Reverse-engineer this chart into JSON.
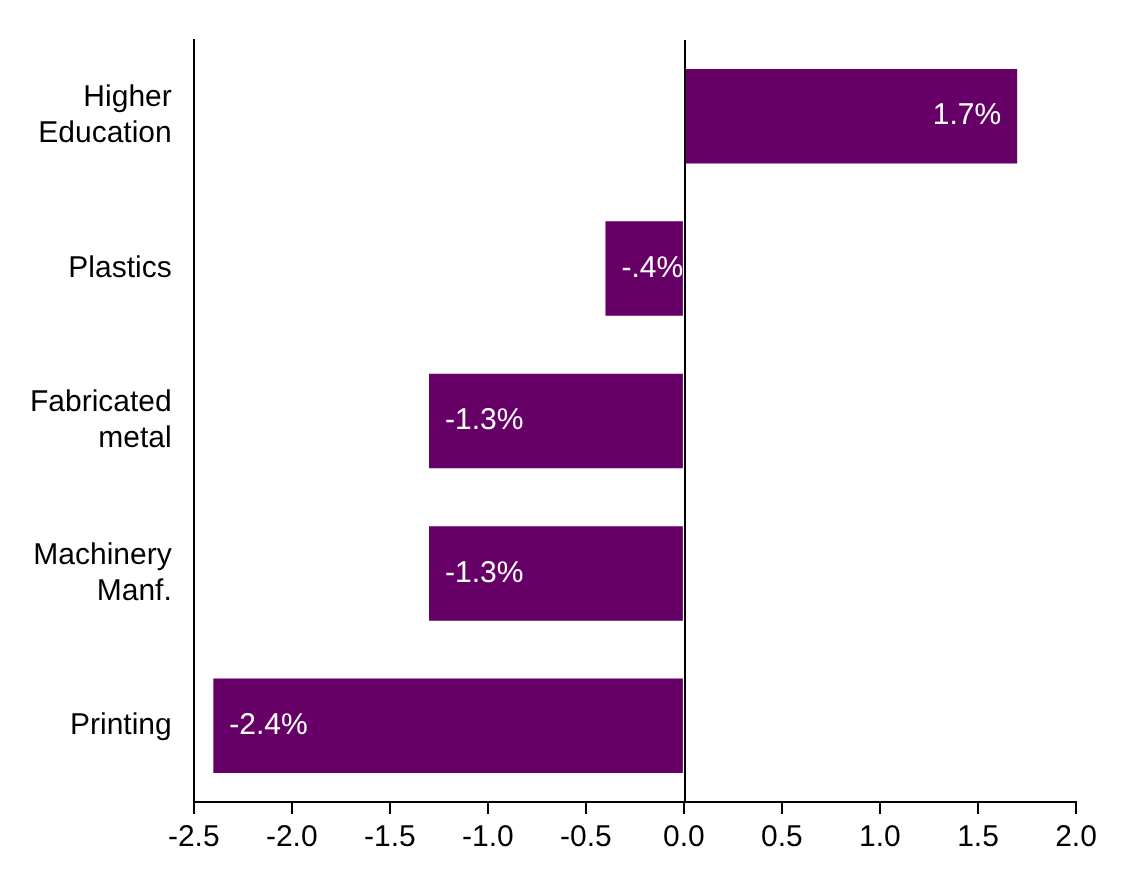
{
  "chart_data": {
    "type": "bar",
    "orientation": "horizontal",
    "categories": [
      "Higher Education",
      "Plastics",
      "Fabricated metal",
      "Machinery Manf.",
      "Printing"
    ],
    "values": [
      1.7,
      -0.4,
      -1.3,
      -1.3,
      -2.4
    ],
    "color": "#660066",
    "value_labels": [
      "1.7%",
      "-.4%",
      "-1.3%",
      "-1.3%",
      "-2.4%"
    ],
    "xlim": [
      -2.5,
      2.0
    ],
    "xticks": [
      {
        "value": -2.5,
        "label": "-2.5"
      },
      {
        "value": -2,
        "label": "-2.0"
      },
      {
        "value": -1.5,
        "label": "-1.5"
      },
      {
        "value": -1,
        "label": "-1.0"
      },
      {
        "value": -0.5,
        "label": "-0.5"
      },
      {
        "value": 0,
        "label": "0.0"
      },
      {
        "value": 0.5,
        "label": "0.5"
      },
      {
        "value": 1,
        "label": "1.0"
      },
      {
        "value": 1.5,
        "label": "1.5"
      },
      {
        "value": 2,
        "label": "2.0"
      }
    ],
    "ref_lines": [
      {
        "axis": "x",
        "value": 0,
        "color": "#000000"
      }
    ],
    "legend": false
  }
}
